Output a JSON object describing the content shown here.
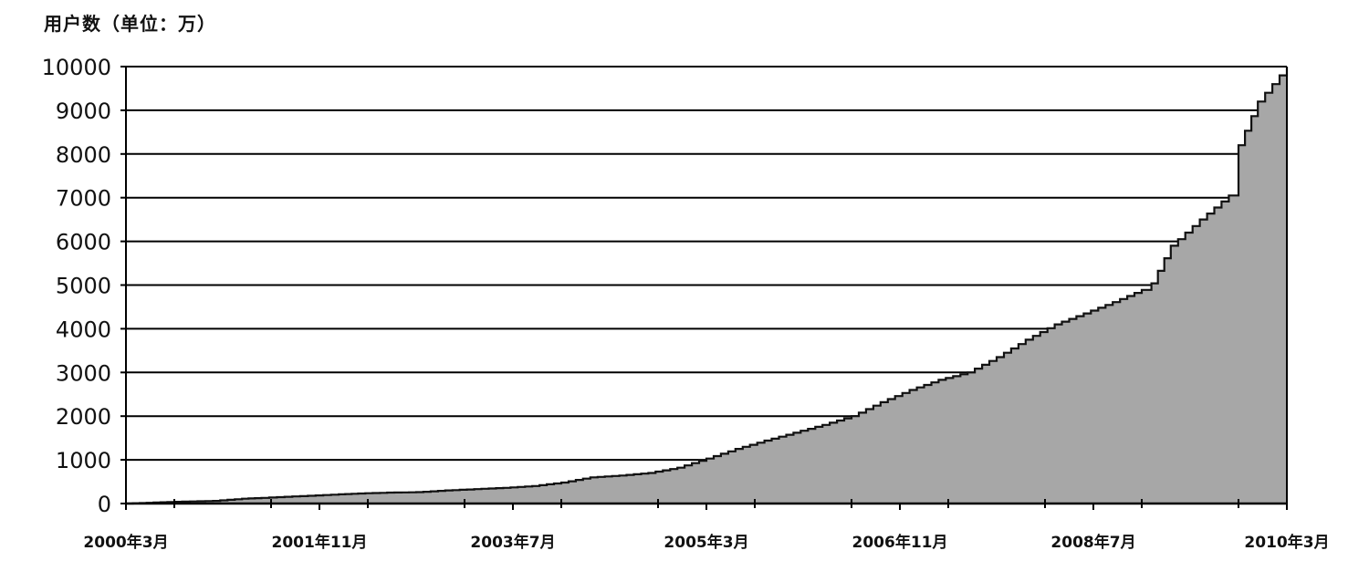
{
  "chart_data": {
    "type": "area",
    "title": "",
    "ylabel": "用户数（单位：万）",
    "xlabel": "",
    "ylim": [
      0,
      10000
    ],
    "yticks": [
      0,
      1000,
      2000,
      3000,
      4000,
      5000,
      6000,
      7000,
      8000,
      9000,
      10000
    ],
    "xlim": [
      "2000-03",
      "2010-03"
    ],
    "xticks": [
      "2000年3月",
      "2001年11月",
      "2003年7月",
      "2005年3月",
      "2006年11月",
      "2008年7月",
      "2010年3月"
    ],
    "grid": true,
    "colors": {
      "fill": "#a7a7a7",
      "line": "#111111",
      "grid": "#000000"
    },
    "series": [
      {
        "x": [
          "2000-03",
          "2000-08",
          "2000-12",
          "2001-03",
          "2001-05",
          "2001-09",
          "2002-01",
          "2002-03",
          "2002-06",
          "2002-09",
          "2002-12",
          "2003-03",
          "2003-06",
          "2003-09",
          "2003-12",
          "2004-03",
          "2004-06",
          "2004-09",
          "2004-12",
          "2005-03",
          "2005-06",
          "2005-09",
          "2005-12",
          "2006-03",
          "2006-06",
          "2006-09",
          "2006-12",
          "2007-03",
          "2007-06",
          "2007-09",
          "2007-12",
          "2008-03",
          "2008-06",
          "2008-09",
          "2008-12",
          "2009-01",
          "2009-03",
          "2009-06",
          "2009-09",
          "2009-10",
          "2009-12",
          "2010-03"
        ],
        "values": [
          0,
          40,
          60,
          110,
          130,
          170,
          210,
          230,
          250,
          260,
          300,
          330,
          360,
          400,
          480,
          600,
          640,
          700,
          820,
          1030,
          1250,
          1440,
          1620,
          1800,
          2000,
          2320,
          2600,
          2830,
          3000,
          3350,
          3750,
          4100,
          4350,
          4610,
          4890,
          5040,
          5900,
          6500,
          7050,
          8200,
          9200,
          10000
        ]
      }
    ]
  }
}
